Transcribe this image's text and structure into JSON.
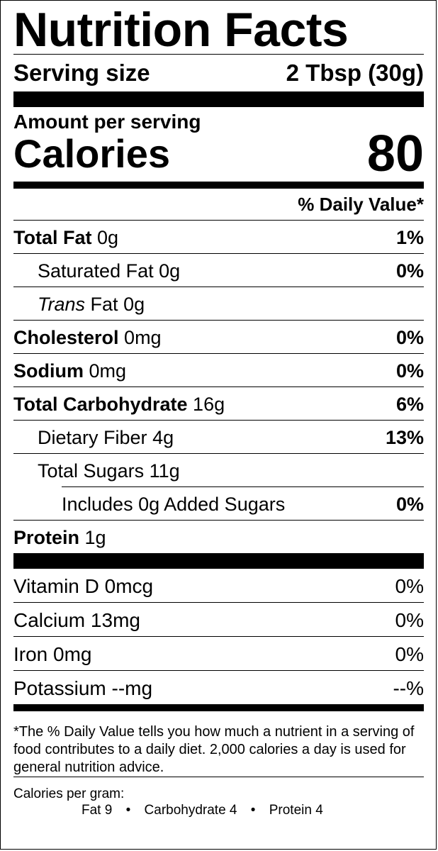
{
  "title": "Nutrition Facts",
  "serving": {
    "label": "Serving size",
    "value": "2 Tbsp (30g)"
  },
  "amount_per_serving": "Amount per serving",
  "calories": {
    "label": "Calories",
    "value": "80"
  },
  "daily_value_header": "% Daily Value*",
  "nutrients": [
    {
      "name": "Total Fat",
      "amount": "0g",
      "dv": "1%"
    },
    {
      "name": "Saturated Fat",
      "amount": "0g",
      "dv": "0%"
    },
    {
      "name": "Trans",
      "name_rest": "Fat",
      "amount": "0g",
      "dv": ""
    },
    {
      "name": "Cholesterol",
      "amount": "0mg",
      "dv": "0%"
    },
    {
      "name": "Sodium",
      "amount": "0mg",
      "dv": "0%"
    },
    {
      "name": "Total Carbohydrate",
      "amount": "16g",
      "dv": "6%"
    },
    {
      "name": "Dietary Fiber",
      "amount": "4g",
      "dv": "13%"
    },
    {
      "name": "Total Sugars",
      "amount": "11g",
      "dv": ""
    },
    {
      "name": "Includes 0g Added Sugars",
      "amount": "",
      "dv": "0%"
    },
    {
      "name": "Protein",
      "amount": "1g",
      "dv": ""
    }
  ],
  "vitamins": [
    {
      "name": "Vitamin D",
      "amount": "0mcg",
      "dv": "0%"
    },
    {
      "name": "Calcium",
      "amount": "13mg",
      "dv": "0%"
    },
    {
      "name": "Iron",
      "amount": "0mg",
      "dv": "0%"
    },
    {
      "name": "Potassium",
      "amount": "--mg",
      "dv": "--%"
    }
  ],
  "footnote": "*The % Daily Value tells you how much a nutrient in a serving of food contributes to a daily diet. 2,000 calories a day is used for general nutrition advice.",
  "calories_per_gram": {
    "label": "Calories per gram:",
    "fat": "Fat 9",
    "carbohydrate": "Carbohydrate 4",
    "protein": "Protein 4",
    "separator": "•"
  }
}
